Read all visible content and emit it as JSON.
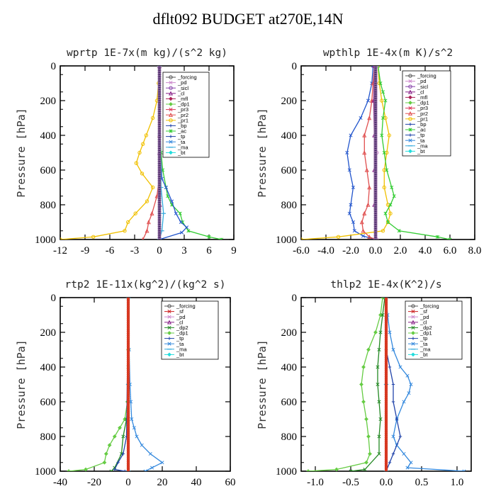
{
  "title": "dflt092  BUDGET at270E,14N",
  "chart_data": [
    {
      "type": "line",
      "title": "wprtp  1E-7x(m kg)/(s^2 kg)",
      "ylabel": "Pressure [hPa]",
      "xlim": [
        -12,
        9
      ],
      "ylim": [
        1000,
        0
      ],
      "xticks": [
        -12,
        -9,
        -6,
        -3,
        0,
        3,
        6,
        9
      ],
      "xtick_labels": [
        "-12",
        "-9",
        "-6",
        "-3",
        "0",
        "3",
        "6",
        "9"
      ],
      "yticks": [
        0,
        200,
        400,
        600,
        800,
        1000
      ],
      "ytick_labels": [
        "0",
        "200",
        "400",
        "600",
        "800",
        "1000"
      ],
      "legend": [
        "_forcing",
        "_pd",
        "_sicl",
        "_cl",
        "_mfl",
        "_dp1",
        "_pr3",
        "_pr2",
        "_pr1",
        "_bp",
        "_ac",
        "_tp",
        "_ta",
        "_ma",
        "_bt"
      ],
      "series": [
        {
          "name": "_pr1",
          "color": "#f0c000",
          "pressure": [
            0,
            100,
            200,
            300,
            400,
            450,
            500,
            560,
            620,
            700,
            780,
            850,
            900,
            950,
            985,
            1000
          ],
          "values": [
            0,
            -0.1,
            -0.3,
            -0.8,
            -1.6,
            -2.0,
            -2.4,
            -2.8,
            -2.1,
            -0.8,
            -1.5,
            -2.9,
            -3.8,
            -4.2,
            -8,
            -12
          ]
        },
        {
          "name": "_ac",
          "color": "#33cc33",
          "pressure": [
            0,
            300,
            500,
            600,
            700,
            750,
            800,
            850,
            900,
            950,
            985,
            1000
          ],
          "values": [
            0,
            0,
            0.2,
            0.4,
            0.8,
            1.0,
            1.5,
            2.5,
            2.8,
            3.5,
            6,
            7.5
          ]
        },
        {
          "name": "_pr2",
          "color": "#e05050",
          "pressure": [
            0,
            400,
            600,
            750,
            850,
            900,
            950,
            1000
          ],
          "values": [
            0,
            0,
            0.1,
            -0.3,
            -0.9,
            -1.3,
            -1.5,
            -2.0
          ]
        },
        {
          "name": "_ta",
          "color": "#2255cc",
          "pressure": [
            0,
            400,
            650,
            700,
            780,
            850,
            900,
            930,
            960,
            1000
          ],
          "values": [
            0,
            0,
            0.3,
            0.8,
            1.5,
            2.0,
            2.6,
            3.3,
            2.7,
            0
          ]
        },
        {
          "name": "_ma",
          "color": "#33aadd",
          "pressure": [
            0,
            700,
            850,
            950,
            1000
          ],
          "values": [
            0,
            0.2,
            0.5,
            0.3,
            0
          ]
        },
        {
          "name": "_cl",
          "color": "#882288",
          "pressure": [
            0,
            500,
            800,
            1000
          ],
          "values": [
            0,
            0,
            0.05,
            0
          ]
        },
        {
          "name": "_bp",
          "color": "#222288",
          "pressure": [
            0,
            500,
            1000
          ],
          "values": [
            0,
            0,
            0
          ]
        }
      ]
    },
    {
      "type": "line",
      "title": "wpthlp  1E-4x(m K)/s^2",
      "ylabel": "Pressure [hPa]",
      "xlim": [
        -6,
        8
      ],
      "ylim": [
        1000,
        0
      ],
      "xticks": [
        -6,
        -4,
        -2,
        0,
        2,
        4,
        6,
        8
      ],
      "xtick_labels": [
        "-6.0",
        "-4.0",
        "-2.0",
        "0.0",
        "2.0",
        "4.0",
        "6.0",
        "8.0"
      ],
      "yticks": [
        0,
        200,
        400,
        600,
        800,
        1000
      ],
      "ytick_labels": [
        "0",
        "200",
        "400",
        "600",
        "800",
        "1000"
      ],
      "legend": [
        "_forcing",
        "_pd",
        "_sicl",
        "_cl",
        "_mfl",
        "_dp1",
        "_pr3",
        "_pr2",
        "_pr1",
        "_bp",
        "_ac",
        "_tp",
        "_ta",
        "_ma",
        "_bt"
      ],
      "series": [
        {
          "name": "_ta",
          "color": "#2255cc",
          "pressure": [
            0,
            100,
            200,
            300,
            400,
            500,
            600,
            700,
            800,
            850,
            900,
            950,
            980,
            1000
          ],
          "values": [
            -0.2,
            -0.3,
            -0.6,
            -1.2,
            -2.0,
            -2.3,
            -2.1,
            -1.8,
            -2.0,
            -2.1,
            -1.8,
            -1.7,
            -1.0,
            0
          ]
        },
        {
          "name": "_pr1",
          "color": "#f0c000",
          "pressure": [
            0,
            100,
            200,
            300,
            400,
            500,
            600,
            700,
            800,
            850,
            900,
            950,
            985,
            1000
          ],
          "values": [
            0.2,
            0.3,
            0.5,
            0.8,
            1.1,
            0.9,
            0.7,
            0.7,
            1.0,
            1.2,
            1.0,
            0.6,
            -3,
            -6
          ]
        },
        {
          "name": "_ac",
          "color": "#33cc33",
          "pressure": [
            0,
            100,
            150,
            200,
            300,
            400,
            500,
            600,
            700,
            750,
            800,
            850,
            900,
            950,
            985,
            1000
          ],
          "values": [
            0.2,
            0.4,
            0.6,
            0.8,
            0.6,
            0.5,
            0.7,
            0.9,
            1.3,
            1.5,
            1.2,
            0.8,
            1.0,
            1.9,
            5,
            6
          ]
        },
        {
          "name": "_pr2",
          "color": "#e05050",
          "pressure": [
            0,
            100,
            200,
            300,
            400,
            500,
            600,
            700,
            800,
            850,
            900,
            950,
            985,
            1000
          ],
          "values": [
            -0.1,
            -0.2,
            -0.3,
            -0.5,
            -0.9,
            -0.9,
            -0.7,
            -0.5,
            -0.6,
            -0.9,
            -1.1,
            -1.0,
            -0.5,
            0
          ]
        },
        {
          "name": "_bp",
          "color": "#222288",
          "pressure": [
            0,
            500,
            1000
          ],
          "values": [
            0,
            0,
            0
          ]
        },
        {
          "name": "_cl",
          "color": "#882288",
          "pressure": [
            0,
            200,
            400,
            600,
            800,
            1000
          ],
          "values": [
            -0.1,
            -0.15,
            -0.1,
            -0.1,
            -0.1,
            0
          ]
        },
        {
          "name": "_sicl",
          "color": "#cc88cc",
          "pressure": [
            0,
            500,
            1000
          ],
          "values": [
            0.1,
            0.1,
            0.1
          ]
        }
      ]
    },
    {
      "type": "line",
      "title": "rtp2  1E-11x(kg^2)/(kg^2 s)",
      "ylabel": "Pressure [hPa]",
      "xlim": [
        -40,
        60
      ],
      "ylim": [
        1000,
        0
      ],
      "xticks": [
        -40,
        -20,
        0,
        20,
        40,
        60
      ],
      "xtick_labels": [
        "-40",
        "-20",
        "0",
        "20",
        "40",
        "60"
      ],
      "yticks": [
        0,
        200,
        400,
        600,
        800,
        1000
      ],
      "ytick_labels": [
        "0",
        "200",
        "400",
        "600",
        "800",
        "1000"
      ],
      "legend": [
        "_forcing",
        "_sf",
        "_pd",
        "_cl",
        "_dp2",
        "_dp1",
        "_tp",
        "_ta",
        "_ma",
        "_bt"
      ],
      "series": [
        {
          "name": "_dp1",
          "color": "#66cc44",
          "pressure": [
            0,
            300,
            500,
            600,
            700,
            750,
            800,
            850,
            900,
            950,
            990,
            1000
          ],
          "values": [
            0,
            0,
            0,
            -0.5,
            -2,
            -5,
            -8,
            -11,
            -13,
            -14,
            -25,
            -35
          ]
        },
        {
          "name": "_dp2",
          "color": "#228822",
          "pressure": [
            0,
            400,
            600,
            700,
            800,
            900,
            980,
            1000
          ],
          "values": [
            0,
            0,
            0,
            -1,
            -3,
            -4,
            -8,
            -10
          ]
        },
        {
          "name": "_ta",
          "color": "#3388dd",
          "pressure": [
            0,
            300,
            500,
            600,
            700,
            750,
            800,
            850,
            900,
            950,
            980,
            1000
          ],
          "values": [
            0,
            0.5,
            1,
            1.5,
            2,
            3.5,
            5,
            8,
            13,
            20,
            14,
            10
          ]
        },
        {
          "name": "_tp",
          "color": "#2244aa",
          "pressure": [
            0,
            800,
            900,
            950,
            990,
            1000
          ],
          "values": [
            0,
            -1,
            -3,
            -6,
            -8,
            -2
          ]
        },
        {
          "name": "_ma",
          "color": "#33aadd",
          "pressure": [
            0,
            500,
            1000
          ],
          "values": [
            0,
            0,
            0
          ]
        }
      ]
    },
    {
      "type": "line",
      "title": "thlp2  1E-4x(K^2)/s",
      "ylabel": "Pressure [hPa]",
      "xlim": [
        -1.2,
        1.2
      ],
      "ylim": [
        1000,
        0
      ],
      "xticks": [
        -1.0,
        -0.5,
        0.0,
        0.5,
        1.0
      ],
      "xtick_labels": [
        "-1.0",
        "-0.5",
        "0.0",
        "0.5",
        "1.0"
      ],
      "yticks": [
        0,
        200,
        400,
        600,
        800,
        1000
      ],
      "ytick_labels": [
        "0",
        "200",
        "400",
        "600",
        "800",
        "1000"
      ],
      "legend": [
        "_forcing",
        "_sf",
        "_pd",
        "_cl",
        "_dp2",
        "_dp1",
        "_tp",
        "_ta",
        "_ma",
        "_bt"
      ],
      "series": [
        {
          "name": "_dp1",
          "color": "#66cc44",
          "pressure": [
            0,
            100,
            200,
            300,
            400,
            500,
            600,
            700,
            800,
            900,
            950,
            990,
            1000
          ],
          "values": [
            -0.05,
            -0.08,
            -0.15,
            -0.25,
            -0.32,
            -0.35,
            -0.32,
            -0.28,
            -0.25,
            -0.23,
            -0.28,
            -0.7,
            -1.1
          ]
        },
        {
          "name": "_dp2",
          "color": "#228822",
          "pressure": [
            0,
            100,
            200,
            300,
            400,
            500,
            600,
            700,
            800,
            900,
            990,
            1000
          ],
          "values": [
            -0.02,
            -0.05,
            -0.08,
            -0.1,
            -0.12,
            -0.12,
            -0.1,
            -0.08,
            -0.1,
            -0.1,
            -0.3,
            -0.5
          ]
        },
        {
          "name": "_ta",
          "color": "#3388dd",
          "pressure": [
            0,
            100,
            200,
            300,
            400,
            450,
            500,
            550,
            600,
            700,
            800,
            850,
            900,
            950,
            980,
            1000
          ],
          "values": [
            0,
            0.02,
            0.05,
            0.1,
            0.2,
            0.3,
            0.35,
            0.32,
            0.25,
            0.15,
            0.1,
            0.15,
            0.25,
            0.35,
            0.3,
            1.1
          ]
        },
        {
          "name": "_tp",
          "color": "#2244aa",
          "pressure": [
            0,
            300,
            400,
            500,
            600,
            700,
            800,
            900,
            950,
            1000
          ],
          "values": [
            0,
            0,
            0.05,
            0.1,
            0.1,
            0.15,
            0.2,
            0.1,
            0.05,
            0
          ]
        },
        {
          "name": "_ma",
          "color": "#33aadd",
          "pressure": [
            0,
            500,
            1000
          ],
          "values": [
            0,
            0,
            0
          ]
        }
      ]
    }
  ]
}
